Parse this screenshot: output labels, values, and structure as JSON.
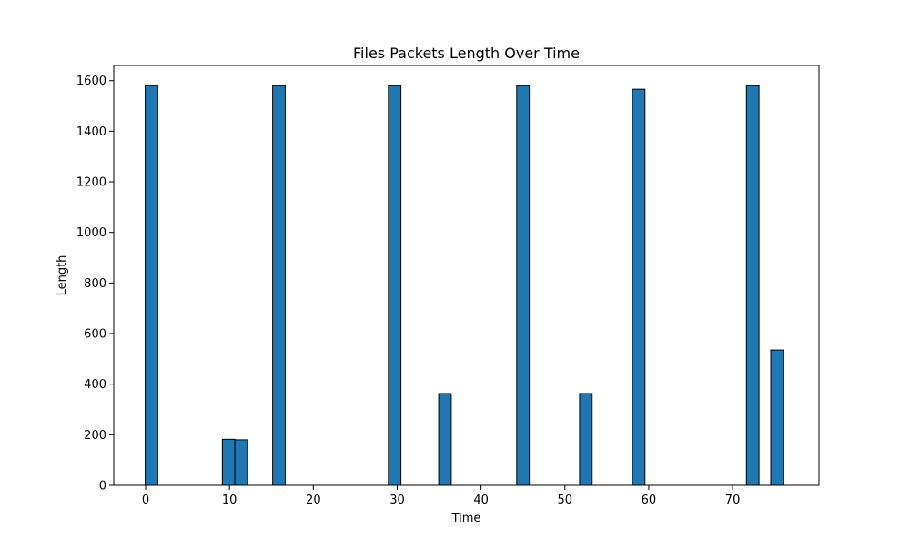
{
  "chart_data": {
    "type": "bar",
    "title": "Files Packets Length Over Time",
    "xlabel": "Time",
    "ylabel": "Length",
    "xlim": [
      -3.8,
      80.3
    ],
    "ylim": [
      0,
      1660
    ],
    "xticks": [
      0,
      10,
      20,
      30,
      40,
      50,
      60,
      70
    ],
    "yticks": [
      0,
      200,
      400,
      600,
      800,
      1000,
      1200,
      1400,
      1600
    ],
    "bar_width": 1.5,
    "bar_color": "#1f77b4",
    "edge_color": "#000000",
    "grid": false,
    "bars": [
      {
        "x": 0.7,
        "value": 1580
      },
      {
        "x": 9.9,
        "value": 182
      },
      {
        "x": 11.4,
        "value": 180
      },
      {
        "x": 15.9,
        "value": 1580
      },
      {
        "x": 29.7,
        "value": 1580
      },
      {
        "x": 35.7,
        "value": 363
      },
      {
        "x": 45.0,
        "value": 1580
      },
      {
        "x": 52.5,
        "value": 363
      },
      {
        "x": 58.8,
        "value": 1566
      },
      {
        "x": 72.4,
        "value": 1580
      },
      {
        "x": 75.3,
        "value": 535
      }
    ]
  }
}
